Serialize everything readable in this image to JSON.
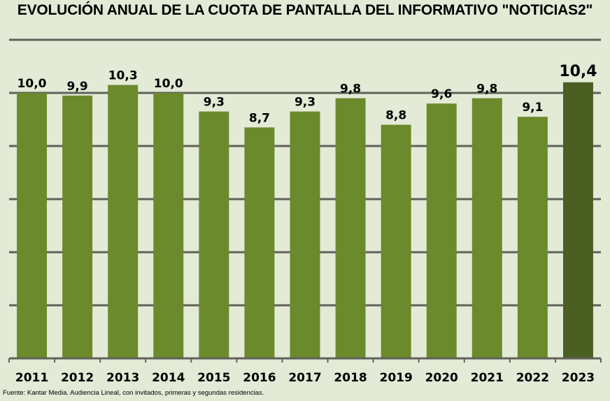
{
  "chart_data": {
    "type": "bar",
    "title": "EVOLUCIÓN ANUAL DE LA CUOTA DE PANTALLA DEL INFORMATIVO \"NOTICIAS2\"",
    "xlabel": "",
    "ylabel": "",
    "ylim": [
      0,
      12
    ],
    "grid": true,
    "legend": "none",
    "categories": [
      "2011",
      "2012",
      "2013",
      "2014",
      "2015",
      "2016",
      "2017",
      "2018",
      "2019",
      "2020",
      "2021",
      "2022",
      "2023"
    ],
    "values": [
      10.0,
      9.9,
      10.3,
      10.0,
      9.3,
      8.7,
      9.3,
      9.8,
      8.8,
      9.6,
      9.8,
      9.1,
      10.4
    ],
    "labels": [
      "10,0",
      "9,9",
      "10,3",
      "10,0",
      "9,3",
      "8,7",
      "9,3",
      "9,8",
      "8,8",
      "9,6",
      "9,8",
      "9,1",
      "10,4"
    ],
    "highlight_index": 12,
    "colors": {
      "bar": "#6b8a2c",
      "highlight": "#4a5f21",
      "grid": "#5f625a",
      "background": "#e3ead6"
    }
  },
  "source": "Fuente: Kantar Media. Audiencia Lineal, con invitados, primeras y segundas residencias."
}
